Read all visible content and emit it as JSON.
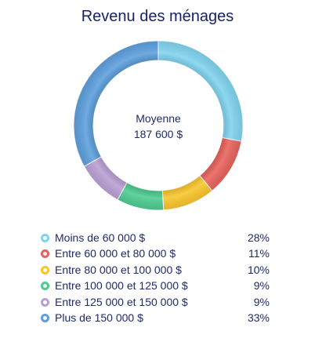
{
  "chart_data": {
    "type": "pie",
    "donut": true,
    "title": "Revenu des ménages",
    "center": {
      "line1": "Moyenne",
      "line2": "187 600 $"
    },
    "categories": [
      "Moins de 60 000 $",
      "Entre 60 000 et 80 000 $",
      "Entre 80 000 et 100 000 $",
      "Entre 100 000 et 125 000 $",
      "Entre 125 000 et 150 000 $",
      "Plus de 150 000 $"
    ],
    "values": [
      28,
      11,
      10,
      9,
      9,
      33
    ],
    "value_labels": [
      "28%",
      "11%",
      "10%",
      "9%",
      "9%",
      "33%"
    ],
    "colors": [
      "#7fd3ee",
      "#e8625c",
      "#f9c52a",
      "#4ccb91",
      "#b99fd3",
      "#5c9fdc"
    ],
    "legend_placement": "bottom"
  }
}
